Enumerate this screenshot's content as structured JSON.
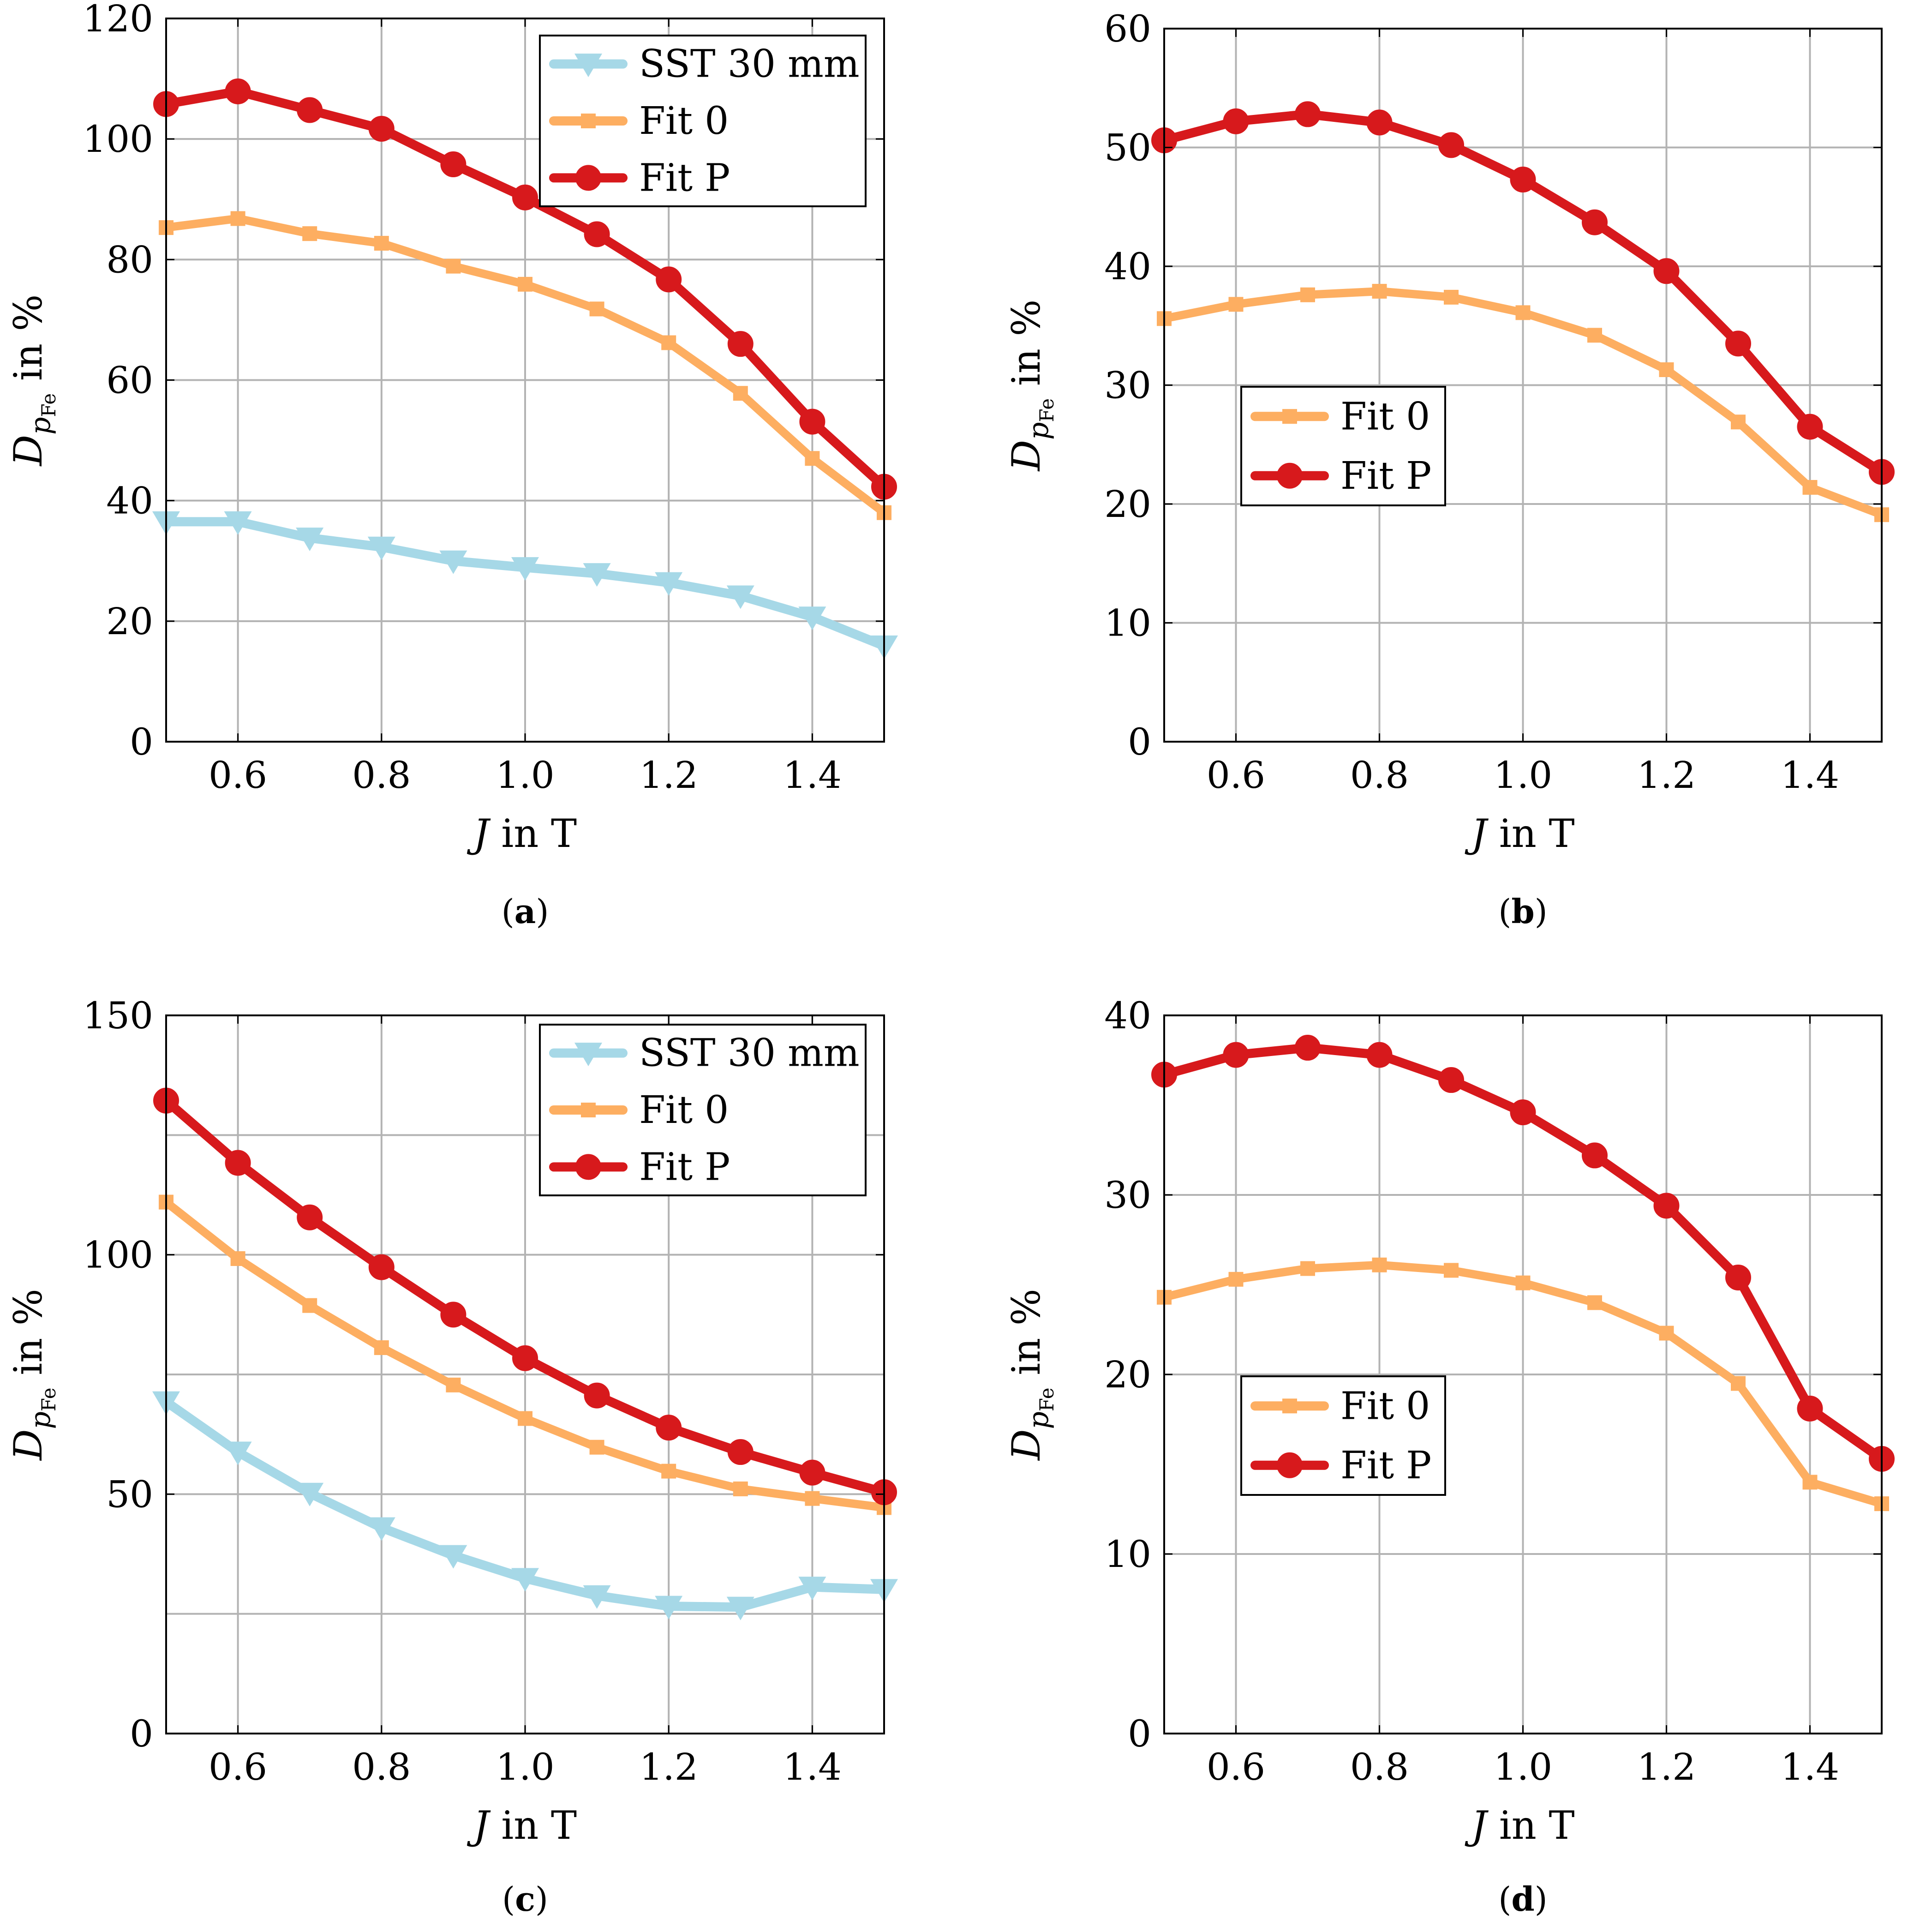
{
  "chart_data": [
    {
      "type": "line",
      "caption": "(a)",
      "caption_letter": "a",
      "xlabel_var": "J",
      "xlabel_unit": "in T",
      "ylabel_var": "D",
      "ylabel_sub": "p",
      "ylabel_subsub": "Fe",
      "ylabel_unit": "in %",
      "xlim": [
        0.5,
        1.5
      ],
      "ylim": [
        0,
        120
      ],
      "xticks": [
        0.6,
        0.8,
        1.0,
        1.2,
        1.4
      ],
      "xtick_labels": [
        "0.6",
        "0.8",
        "1.0",
        "1.2",
        "1.4"
      ],
      "yticks": [
        0,
        20,
        40,
        60,
        80,
        100,
        120
      ],
      "ytick_labels": [
        "0",
        "20",
        "40",
        "60",
        "80",
        "100",
        "120"
      ],
      "grid": true,
      "legend_position": "top-right",
      "x": [
        0.5,
        0.6,
        0.7,
        0.8,
        0.9,
        1.0,
        1.1,
        1.2,
        1.3,
        1.4,
        1.5
      ],
      "series": [
        {
          "name": "SST 30 mm",
          "color": "#a6d8e7",
          "marker": "triangle-down",
          "values": [
            36.5,
            36.5,
            33.8,
            32.3,
            30.0,
            28.9,
            27.9,
            26.4,
            24.2,
            20.7,
            15.9
          ]
        },
        {
          "name": "Fit 0",
          "color": "#fdae61",
          "marker": "square",
          "values": [
            85.3,
            86.8,
            84.3,
            82.7,
            78.9,
            75.9,
            71.8,
            66.2,
            57.8,
            47.0,
            38.0
          ]
        },
        {
          "name": "Fit P",
          "color": "#d7191c",
          "marker": "circle",
          "values": [
            105.8,
            107.9,
            104.8,
            101.7,
            95.8,
            90.3,
            84.2,
            76.7,
            66.0,
            53.1,
            42.3
          ]
        }
      ]
    },
    {
      "type": "line",
      "caption": "(b)",
      "caption_letter": "b",
      "xlabel_var": "J",
      "xlabel_unit": "in T",
      "ylabel_var": "D",
      "ylabel_sub": "p",
      "ylabel_subsub": "Fe",
      "ylabel_unit": "in %",
      "xlim": [
        0.5,
        1.5
      ],
      "ylim": [
        0,
        60
      ],
      "xticks": [
        0.6,
        0.8,
        1.0,
        1.2,
        1.4
      ],
      "xtick_labels": [
        "0.6",
        "0.8",
        "1.0",
        "1.2",
        "1.4"
      ],
      "yticks": [
        0,
        10,
        20,
        30,
        40,
        50,
        60
      ],
      "ytick_labels": [
        "0",
        "10",
        "20",
        "30",
        "40",
        "50",
        "60"
      ],
      "grid": true,
      "legend_position": "center-left",
      "x": [
        0.5,
        0.6,
        0.7,
        0.8,
        0.9,
        1.0,
        1.1,
        1.2,
        1.3,
        1.4,
        1.5
      ],
      "series": [
        {
          "name": "Fit 0",
          "color": "#fdae61",
          "marker": "square",
          "values": [
            35.6,
            36.8,
            37.6,
            37.9,
            37.4,
            36.1,
            34.2,
            31.3,
            26.9,
            21.4,
            19.1
          ]
        },
        {
          "name": "Fit P",
          "color": "#d7191c",
          "marker": "circle",
          "values": [
            50.6,
            52.2,
            52.8,
            52.1,
            50.2,
            47.3,
            43.7,
            39.6,
            33.5,
            26.5,
            22.7
          ]
        }
      ]
    },
    {
      "type": "line",
      "caption": "(c)",
      "caption_letter": "c",
      "xlabel_var": "J",
      "xlabel_unit": "in T",
      "ylabel_var": "D",
      "ylabel_sub": "p",
      "ylabel_subsub": "Fe",
      "ylabel_unit": "in %",
      "xlim": [
        0.5,
        1.5
      ],
      "ylim": [
        0,
        150
      ],
      "xticks": [
        0.6,
        0.8,
        1.0,
        1.2,
        1.4
      ],
      "xtick_labels": [
        "0.6",
        "0.8",
        "1.0",
        "1.2",
        "1.4"
      ],
      "yticks": [
        0,
        50,
        100,
        150
      ],
      "ytick_labels": [
        "0",
        "50",
        "100",
        "150"
      ],
      "ygrid_values": [
        0,
        25,
        50,
        75,
        100,
        125,
        150
      ],
      "grid": true,
      "legend_position": "top-right",
      "x": [
        0.5,
        0.6,
        0.7,
        0.8,
        0.9,
        1.0,
        1.1,
        1.2,
        1.3,
        1.4,
        1.5
      ],
      "series": [
        {
          "name": "SST 30 mm",
          "color": "#a6d8e7",
          "marker": "triangle-down",
          "values": [
            69.3,
            58.8,
            50.2,
            43.0,
            37.2,
            32.4,
            28.8,
            26.6,
            26.4,
            30.6,
            30.1
          ]
        },
        {
          "name": "Fit 0",
          "color": "#fdae61",
          "marker": "square",
          "values": [
            111.0,
            99.2,
            89.4,
            80.6,
            72.8,
            65.8,
            59.8,
            54.8,
            51.1,
            49.1,
            47.2
          ]
        },
        {
          "name": "Fit P",
          "color": "#d7191c",
          "marker": "circle",
          "values": [
            132.2,
            119.2,
            107.8,
            97.4,
            87.5,
            78.4,
            70.6,
            63.9,
            58.8,
            54.5,
            50.4
          ]
        }
      ]
    },
    {
      "type": "line",
      "caption": "(d)",
      "caption_letter": "d",
      "xlabel_var": "J",
      "xlabel_unit": "in T",
      "ylabel_var": "D",
      "ylabel_sub": "p",
      "ylabel_subsub": "Fe",
      "ylabel_unit": "in %",
      "xlim": [
        0.5,
        1.5
      ],
      "ylim": [
        0,
        40
      ],
      "xticks": [
        0.6,
        0.8,
        1.0,
        1.2,
        1.4
      ],
      "xtick_labels": [
        "0.6",
        "0.8",
        "1.0",
        "1.2",
        "1.4"
      ],
      "yticks": [
        0,
        10,
        20,
        30,
        40
      ],
      "ytick_labels": [
        "0",
        "10",
        "20",
        "30",
        "40"
      ],
      "grid": true,
      "legend_position": "center-left",
      "x": [
        0.5,
        0.6,
        0.7,
        0.8,
        0.9,
        1.0,
        1.1,
        1.2,
        1.3,
        1.4,
        1.5
      ],
      "series": [
        {
          "name": "Fit 0",
          "color": "#fdae61",
          "marker": "square",
          "values": [
            24.3,
            25.3,
            25.9,
            26.1,
            25.8,
            25.1,
            24.0,
            22.3,
            19.5,
            14.0,
            12.8
          ]
        },
        {
          "name": "Fit P",
          "color": "#d7191c",
          "marker": "circle",
          "values": [
            36.7,
            37.8,
            38.2,
            37.8,
            36.4,
            34.6,
            32.2,
            29.4,
            25.4,
            18.1,
            15.3
          ]
        }
      ]
    }
  ]
}
